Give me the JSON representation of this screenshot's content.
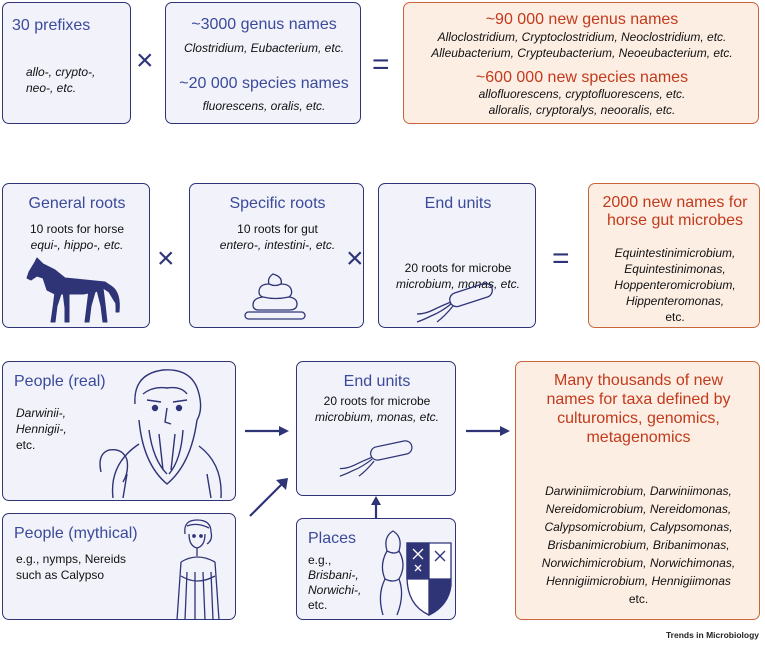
{
  "row1": {
    "prefixes": {
      "title": "30 prefixes",
      "line1": "allo-, crypto-,",
      "line2": "neo-, etc."
    },
    "genus": {
      "title": "~3000 genus names",
      "examples": "Clostridium, Eubacterium, etc."
    },
    "species": {
      "title": "~20 000 species names",
      "examples": "fluorescens, oralis, etc."
    },
    "multiply": "×",
    "equals": "=",
    "result": {
      "genus_title": "~90 000 new genus names",
      "genus_line1": "Alloclostridium, Cryptoclostridium, Neoclostridium, etc.",
      "genus_line2": "Alleubacterium, Crypteubacterium, Neoeubacterium, etc.",
      "species_title": "~600 000 new species names",
      "species_line1": "allofluorescens, cryptofluorescens, etc.",
      "species_line2": "alloralis, cryptoralys, neooralis, etc."
    }
  },
  "row2": {
    "general": {
      "title": "General roots",
      "line1": "10 roots for horse",
      "line2": "equi-, hippo-, etc."
    },
    "specific": {
      "title": "Specific roots",
      "line1": "10 roots for gut",
      "line2": "entero-, intestini-, etc."
    },
    "end_units": {
      "title": "End units",
      "line1": "20 roots for microbe",
      "line2": "microbium, monas, etc."
    },
    "multiply": "×",
    "equals": "=",
    "result": {
      "title1": "2000 new names for",
      "title2": "horse gut microbes",
      "names": [
        "Equintestinimicrobium,",
        "Equintestinimonas,",
        "Hoppenteromicrobium,",
        "Hippenteromonas,",
        "etc."
      ]
    }
  },
  "row3": {
    "people_real": {
      "title": "People (real)",
      "lines": [
        "Darwinii-,",
        "Hennigii-,",
        "etc."
      ]
    },
    "people_mythical": {
      "title": "People (mythical)",
      "line1": "e.g., nymps, Nereids",
      "line2": "such as Calypso"
    },
    "end_units": {
      "title": "End units",
      "line1": "20 roots for microbe",
      "line2": "microbium, monas, etc."
    },
    "places": {
      "title": "Places",
      "lines": [
        "e.g.,",
        "Brisbani-,",
        "Norwichi-,",
        "etc."
      ]
    },
    "result": {
      "title_lines": [
        "Many thousands of new",
        "names for taxa defined by",
        "culturomics, genomics,",
        "metagenomics"
      ],
      "names": [
        "Darwiniimicrobium, Darwiniimonas,",
        "Nereidomicrobium, Nereidomonas,",
        "Calypsomicrobium, Calypsomonas,",
        "Brisbanimicrobium, Bribanimonas,",
        "Norwichimicrobium, Norwichimonas,",
        "Hennigiimicrobium, Hennigiimonas",
        "etc."
      ]
    }
  },
  "footer": "Trends in Microbiology",
  "icons": [
    "horse-icon",
    "stool-icon",
    "bacterium-icon",
    "bearded-man-icon",
    "greek-woman-icon",
    "coat-of-arms-icon",
    "arrow-icon"
  ],
  "colors": {
    "box_border": "#2f3477",
    "box_fill": "#f1f2fa",
    "result_border": "#c8663a",
    "result_fill": "#fdeee4",
    "title_blue": "#3b4a9a",
    "title_red": "#c23a1c"
  }
}
